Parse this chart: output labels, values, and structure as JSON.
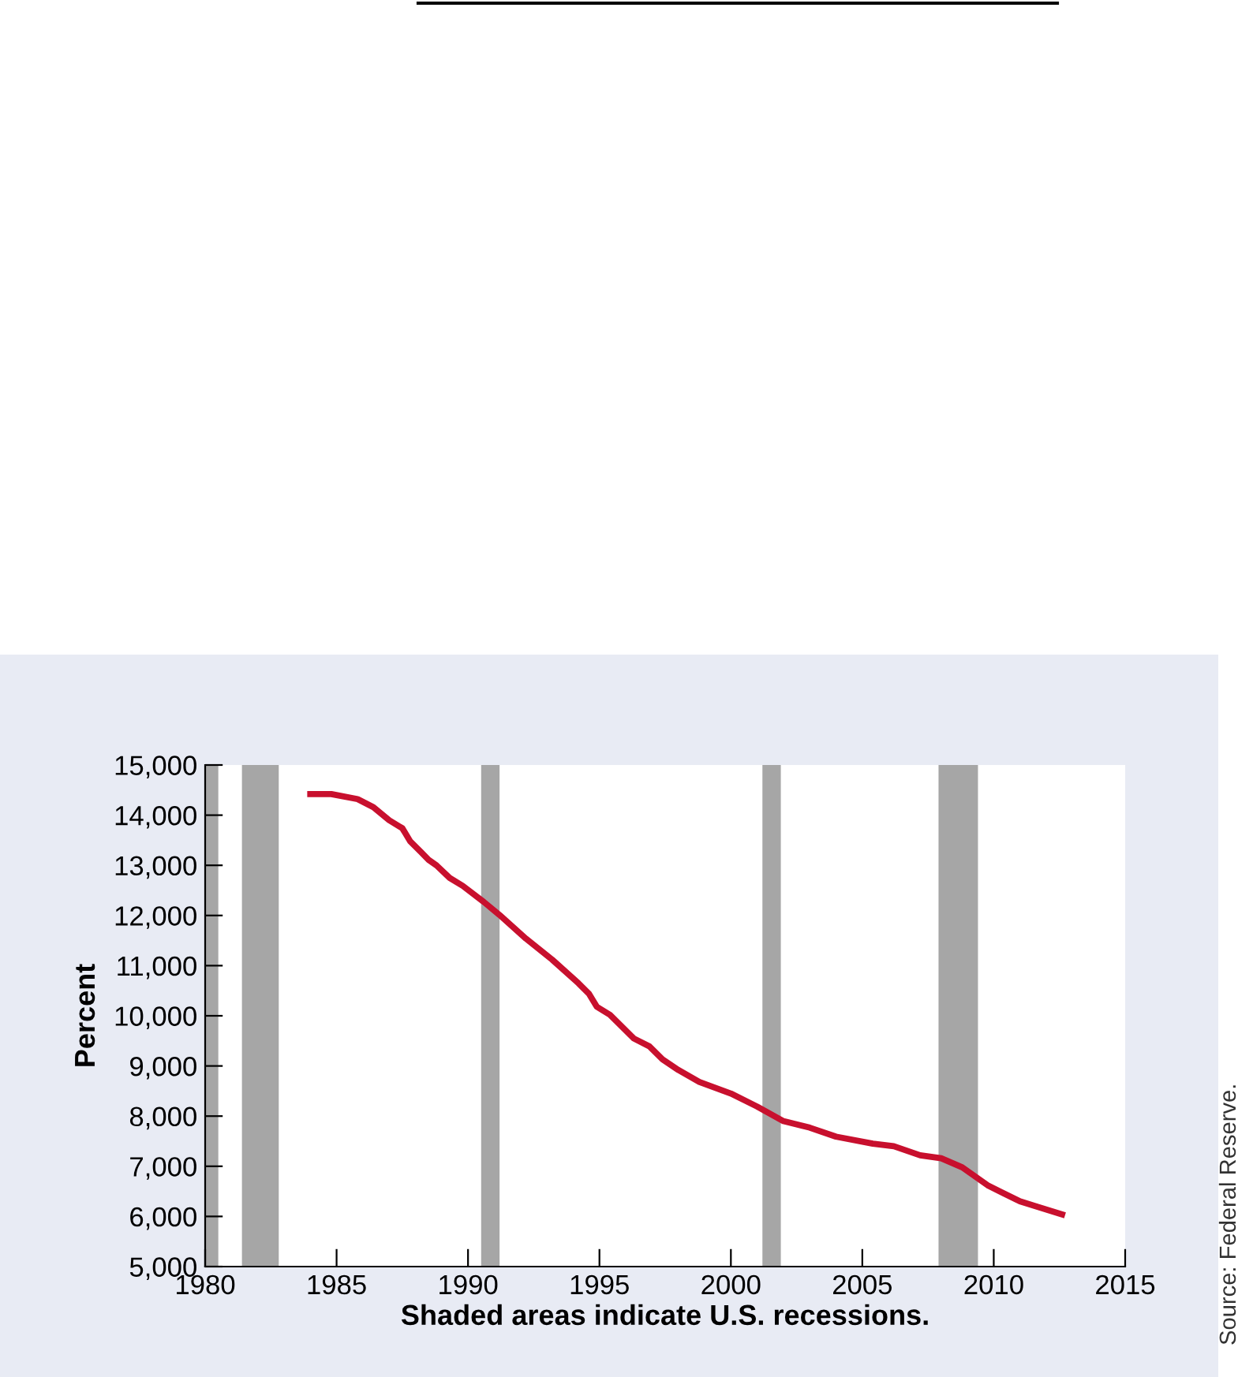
{
  "chart_data": {
    "type": "line",
    "xlabel": "Shaded areas indicate U.S. recessions.",
    "ylabel": "Percent",
    "annotations": [
      "Source: Federal Reserve."
    ],
    "x": [
      1984.0,
      1984.8,
      1985.8,
      1986.4,
      1987.0,
      1987.5,
      1987.8,
      1988.2,
      1988.5,
      1988.8,
      1989.3,
      1989.8,
      1990.6,
      1991.2,
      1992.2,
      1993.2,
      1994.2,
      1994.6,
      1994.9,
      1995.4,
      1995.9,
      1996.3,
      1996.9,
      1997.4,
      1998.0,
      1998.8,
      2000.0,
      2001.0,
      2002.0,
      2003.0,
      2004.0,
      2005.4,
      2006.2,
      2007.2,
      2008.0,
      2008.8,
      2009.8,
      2011.0,
      2012.6
    ],
    "series": [
      {
        "color": "#c8102e",
        "values": [
          14420,
          14420,
          14320,
          14160,
          13900,
          13740,
          13480,
          13270,
          13110,
          13000,
          12750,
          12590,
          12270,
          12010,
          11540,
          11120,
          10650,
          10440,
          10180,
          10020,
          9760,
          9550,
          9390,
          9130,
          8920,
          8680,
          8450,
          8190,
          7900,
          7770,
          7590,
          7450,
          7400,
          7220,
          7160,
          6980,
          6610,
          6300,
          6040
        ]
      }
    ],
    "xlim": [
      1980,
      2015
    ],
    "xticks": [
      1980,
      1985,
      1990,
      1995,
      2000,
      2005,
      2010,
      2015
    ],
    "ylim": [
      5000,
      15000
    ],
    "yticks": [
      {
        "value": 5000,
        "label": "5,000"
      },
      {
        "value": 6000,
        "label": "6,000"
      },
      {
        "value": 7000,
        "label": "7,000"
      },
      {
        "value": 8000,
        "label": "8,000"
      },
      {
        "value": 9000,
        "label": "9,000"
      },
      {
        "value": 10000,
        "label": "10,000"
      },
      {
        "value": 11000,
        "label": "11,000"
      },
      {
        "value": 12000,
        "label": "12,000"
      },
      {
        "value": 13000,
        "label": "13,000"
      },
      {
        "value": 14000,
        "label": "14,000"
      },
      {
        "value": 15000,
        "label": "15,000"
      }
    ],
    "bands": [
      {
        "axis": "x",
        "from": 1980.0,
        "to": 1980.5,
        "color": "#a6a6a6"
      },
      {
        "axis": "x",
        "from": 1981.4,
        "to": 1982.8,
        "color": "#a6a6a6"
      },
      {
        "axis": "x",
        "from": 1990.5,
        "to": 1991.2,
        "color": "#a6a6a6"
      },
      {
        "axis": "x",
        "from": 2001.2,
        "to": 2001.9,
        "color": "#a6a6a6"
      },
      {
        "axis": "x",
        "from": 2007.9,
        "to": 2009.4,
        "color": "#a6a6a6"
      }
    ],
    "grid": false,
    "marker": "none",
    "line_style": "solid"
  }
}
